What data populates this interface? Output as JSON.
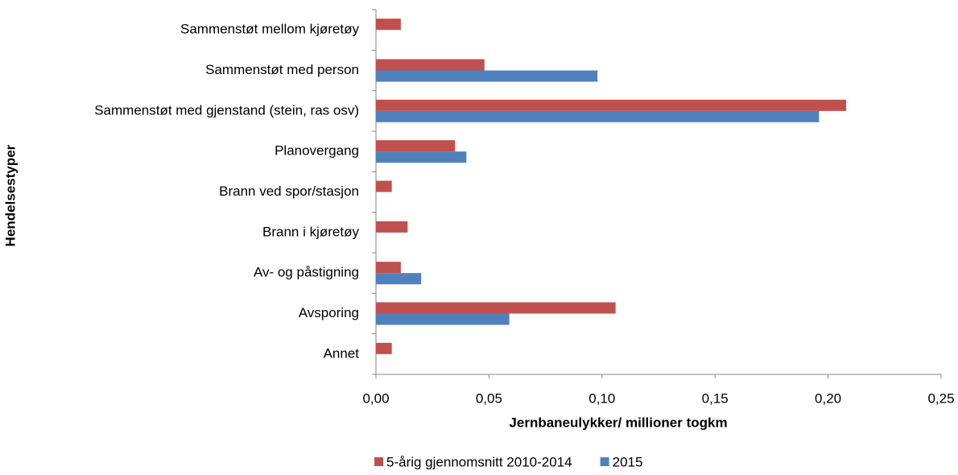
{
  "chart_data": {
    "type": "hbar",
    "y_label": "Hendelsestyper",
    "x_label": "Jernbaneulykker/ millioner togkm",
    "categories": [
      "Sammenstøt mellom kjøretøy",
      "Sammenstøt med person",
      "Sammenstøt med gjenstand (stein, ras osv)",
      "Planovergang",
      "Brann ved spor/stasjon",
      "Brann i kjøretøy",
      "Av- og påstigning",
      "Avsporing",
      "Annet"
    ],
    "series": [
      {
        "name": "5-årig gjennomsnitt 2010-2014",
        "color": "#c0504d",
        "values": [
          0.011,
          0.048,
          0.208,
          0.035,
          0.007,
          0.014,
          0.011,
          0.106,
          0.007
        ]
      },
      {
        "name": "2015",
        "color": "#4f81bd",
        "values": [
          null,
          0.098,
          0.196,
          0.04,
          null,
          null,
          0.02,
          0.059,
          null
        ]
      }
    ],
    "xlim": [
      0,
      0.25
    ],
    "xticks": [
      {
        "value": 0,
        "label": "0,00"
      },
      {
        "value": 0.05,
        "label": "0,05"
      },
      {
        "value": 0.1,
        "label": "0,10"
      },
      {
        "value": 0.15,
        "label": "0,15"
      },
      {
        "value": 0.2,
        "label": "0,20"
      },
      {
        "value": 0.25,
        "label": "0,25"
      }
    ],
    "grid": false,
    "legend": "bottom"
  }
}
